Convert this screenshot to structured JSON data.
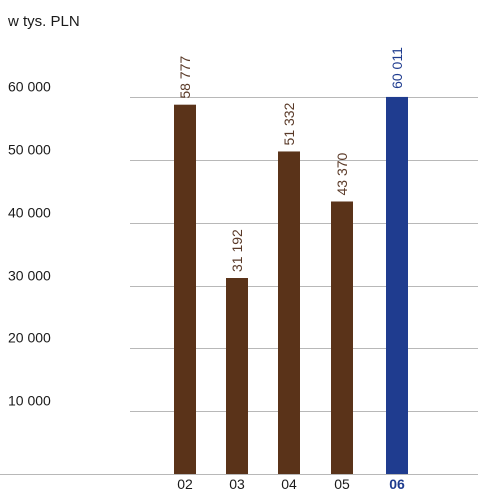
{
  "chart_data": {
    "type": "bar",
    "unit_label": "w tys. PLN",
    "categories": [
      "02",
      "03",
      "04",
      "05",
      "06"
    ],
    "values": [
      58777,
      31192,
      51332,
      43370,
      60011
    ],
    "value_labels": [
      "58 777",
      "31 192",
      "51 332",
      "43 370",
      "60 011"
    ],
    "highlight_index": 4,
    "ylim": [
      0,
      60000
    ],
    "yticks": [
      10000,
      20000,
      30000,
      40000,
      50000,
      60000
    ],
    "ytick_labels": [
      "10 000",
      "20 000",
      "30 000",
      "40 000",
      "50 000",
      "60 000"
    ],
    "grid": true,
    "colors": {
      "bar": "#5a3319",
      "highlight": "#1f3c8f",
      "grid": "#b8b8b8"
    }
  }
}
